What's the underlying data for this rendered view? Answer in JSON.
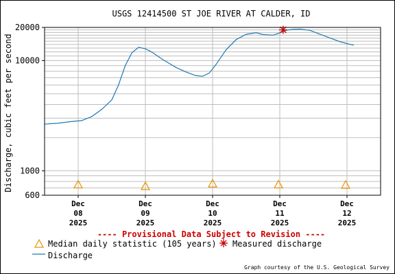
{
  "chart_data": {
    "type": "line",
    "title": "USGS 12414500 ST JOE RIVER AT CALDER, ID",
    "ylabel": "Discharge, cubic feet per second",
    "yscale": "log",
    "ylim": [
      600,
      20000
    ],
    "y_ticks": [
      {
        "value": 600,
        "label": "600"
      },
      {
        "value": 1000,
        "label": "1000"
      },
      {
        "value": 10000,
        "label": "10000"
      },
      {
        "value": 20000,
        "label": "20000"
      }
    ],
    "x_range_days": [
      -0.5,
      4.5
    ],
    "x_ticks": [
      {
        "day": 0,
        "lines": [
          "Dec",
          "08",
          "2025"
        ]
      },
      {
        "day": 1,
        "lines": [
          "Dec",
          "09",
          "2025"
        ]
      },
      {
        "day": 2,
        "lines": [
          "Dec",
          "10",
          "2025"
        ]
      },
      {
        "day": 3,
        "lines": [
          "Dec",
          "11",
          "2025"
        ]
      },
      {
        "day": 4,
        "lines": [
          "Dec",
          "12",
          "2025"
        ]
      }
    ],
    "grid": true,
    "series": [
      {
        "name": "Discharge",
        "color": "#1f77b4",
        "points": [
          [
            -0.5,
            2650
          ],
          [
            -0.3,
            2700
          ],
          [
            -0.1,
            2800
          ],
          [
            0.05,
            2850
          ],
          [
            0.2,
            3100
          ],
          [
            0.35,
            3600
          ],
          [
            0.5,
            4400
          ],
          [
            0.6,
            6000
          ],
          [
            0.7,
            9000
          ],
          [
            0.8,
            11800
          ],
          [
            0.9,
            13200
          ],
          [
            1.0,
            12800
          ],
          [
            1.1,
            11900
          ],
          [
            1.25,
            10300
          ],
          [
            1.45,
            8700
          ],
          [
            1.6,
            7900
          ],
          [
            1.75,
            7300
          ],
          [
            1.85,
            7200
          ],
          [
            1.95,
            7700
          ],
          [
            2.05,
            9200
          ],
          [
            2.2,
            12500
          ],
          [
            2.35,
            15500
          ],
          [
            2.5,
            17300
          ],
          [
            2.65,
            17900
          ],
          [
            2.75,
            17200
          ],
          [
            2.9,
            17000
          ],
          [
            3.0,
            17800
          ],
          [
            3.1,
            18900
          ],
          [
            3.2,
            19200
          ],
          [
            3.3,
            19300
          ],
          [
            3.45,
            18800
          ],
          [
            3.6,
            17300
          ],
          [
            3.75,
            16000
          ],
          [
            3.9,
            14800
          ],
          [
            4.05,
            14000
          ],
          [
            4.1,
            13800
          ]
        ]
      }
    ],
    "median_points": [
      {
        "day": 0.0,
        "value": 750
      },
      {
        "day": 1.0,
        "value": 725
      },
      {
        "day": 2.0,
        "value": 765
      },
      {
        "day": 2.98,
        "value": 750
      },
      {
        "day": 3.98,
        "value": 745
      }
    ],
    "measured_points": [
      {
        "day": 3.05,
        "value": 19000
      }
    ],
    "colors": {
      "median": "#e69500",
      "measured": "#cc0000",
      "provisional": "#cc0000"
    }
  },
  "provisional_note": "---- Provisional Data Subject to Revision ----",
  "legend": {
    "median_label": "Median daily statistic (105 years)",
    "measured_label": "Measured discharge",
    "discharge_label": "Discharge"
  },
  "credit": "Graph courtesy of the U.S. Geological Survey"
}
